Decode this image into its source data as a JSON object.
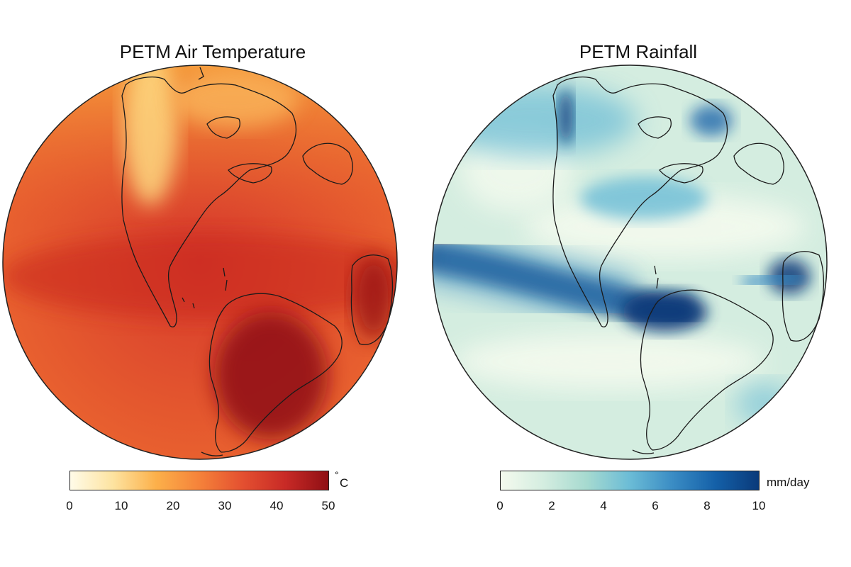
{
  "panels": [
    {
      "title": "PETM Air Temperature",
      "unit_superscript": "°",
      "unit_text": "C",
      "ticks": [
        "0",
        "10",
        "20",
        "30",
        "40",
        "50"
      ],
      "colormap": [
        "#fffbe8",
        "#fde3a0",
        "#fcb04a",
        "#f5823a",
        "#e45030",
        "#c82a26",
        "#8f0f14"
      ],
      "ocean_color": "#d9372b"
    },
    {
      "title": "PETM Rainfall",
      "unit_text": "mm/day",
      "ticks": [
        "0",
        "2",
        "4",
        "6",
        "8",
        "10"
      ],
      "colormap": [
        "#f4faee",
        "#d4ede0",
        "#a6dad0",
        "#6bbcd6",
        "#3a8cc4",
        "#1460a8",
        "#0a3a7a"
      ],
      "ocean_color": "#d4ede0"
    }
  ]
}
